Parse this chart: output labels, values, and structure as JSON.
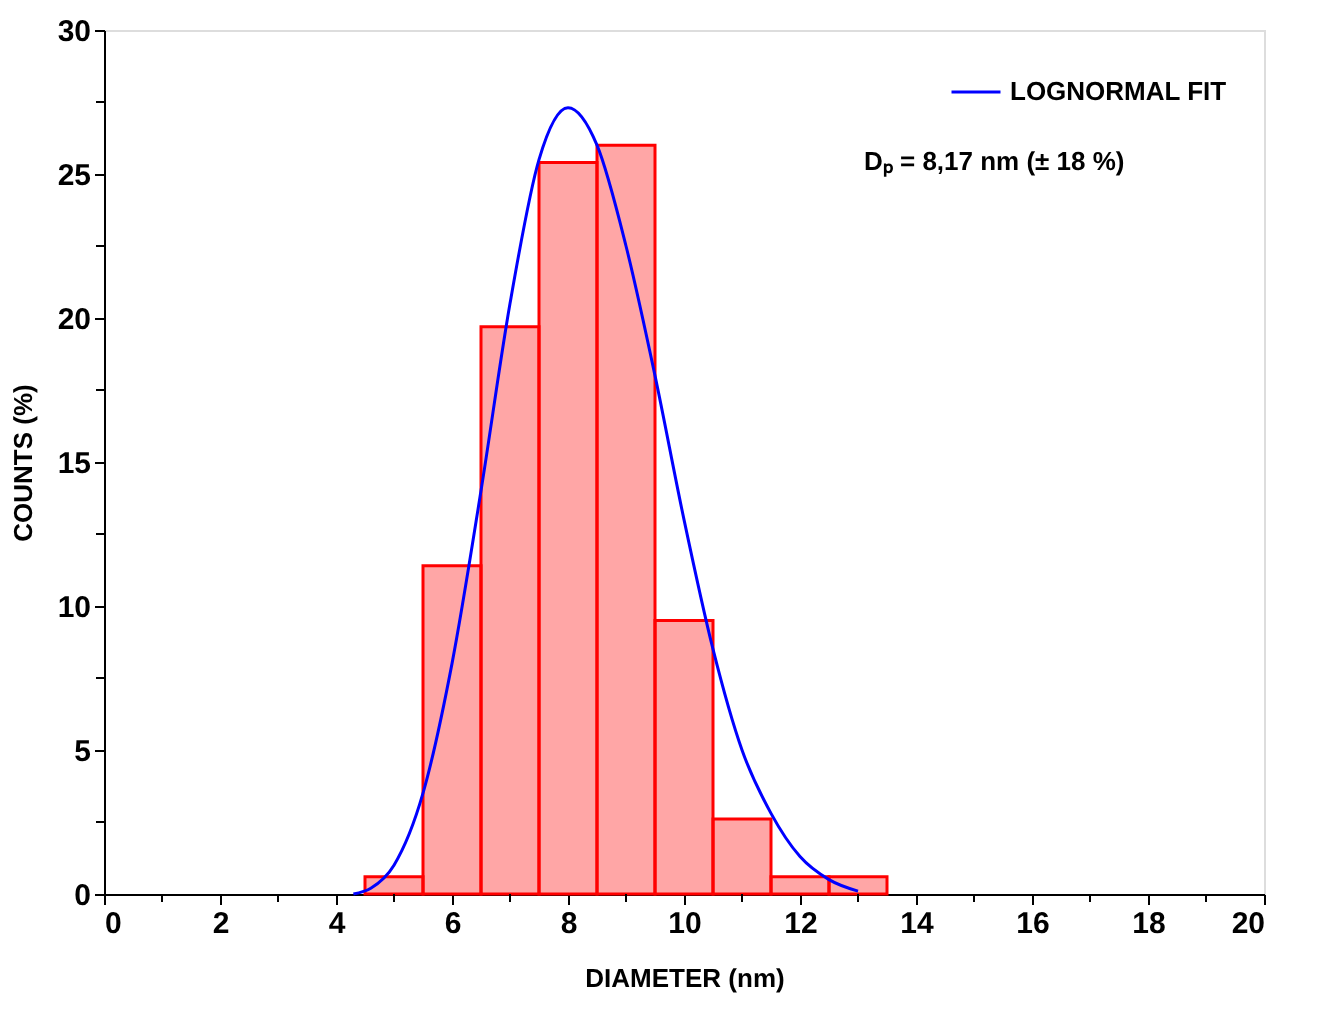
{
  "chart_data": {
    "type": "histogram",
    "xlabel": "DIAMETER  (nm)",
    "ylabel": "COUNTS  (%)",
    "bins": [
      4.5,
      5.5,
      6.5,
      7.5,
      8.5,
      9.5,
      10.5,
      11.5,
      12.5,
      13.5
    ],
    "values": [
      0.6,
      11.4,
      19.7,
      25.4,
      26.0,
      9.5,
      2.6,
      0.6,
      0.6
    ],
    "color": "#ff0000",
    "series": [
      {
        "name": "LOGNORMAL FIT",
        "type": "line",
        "color": "#0000ff",
        "x": [
          4.3,
          4.6,
          5.0,
          5.5,
          6.0,
          6.5,
          7.0,
          7.5,
          8.0,
          8.5,
          9.0,
          9.5,
          10.0,
          10.5,
          11.0,
          11.5,
          12.0,
          12.5,
          13.0
        ],
        "values": [
          0,
          0.2,
          1.0,
          3.5,
          8.0,
          14.0,
          20.5,
          25.5,
          27.3,
          26.0,
          22.5,
          18.0,
          13.0,
          8.5,
          5.0,
          2.8,
          1.3,
          0.5,
          0.1
        ]
      }
    ],
    "annotations": [
      "Dₚ = 8,17 nm  (± 18 %)"
    ],
    "xlim": [
      0,
      20
    ],
    "ylim": [
      0,
      30
    ],
    "xticks": [
      0,
      {
        "value": 1,
        "label": null
      },
      2,
      {
        "value": 3,
        "label": null
      },
      4,
      {
        "value": 5,
        "label": null
      },
      6,
      {
        "value": 7,
        "label": null
      },
      8,
      {
        "value": 9,
        "label": null
      },
      10,
      {
        "value": 11,
        "label": null
      },
      12,
      {
        "value": 13,
        "label": null
      },
      14,
      {
        "value": 15,
        "label": null
      },
      16,
      {
        "value": 17,
        "label": null
      },
      18,
      {
        "value": 19,
        "label": null
      },
      20
    ],
    "yticks": [
      0,
      {
        "value": 2.5,
        "label": null
      },
      5,
      {
        "value": 7.5,
        "label": null
      },
      10,
      {
        "value": 12.5,
        "label": null
      },
      15,
      {
        "value": 17.5,
        "label": null
      },
      20,
      {
        "value": 22.5,
        "label": null
      },
      25,
      {
        "value": 27.5,
        "label": null
      },
      30
    ],
    "grid": false,
    "legend": "top right"
  }
}
